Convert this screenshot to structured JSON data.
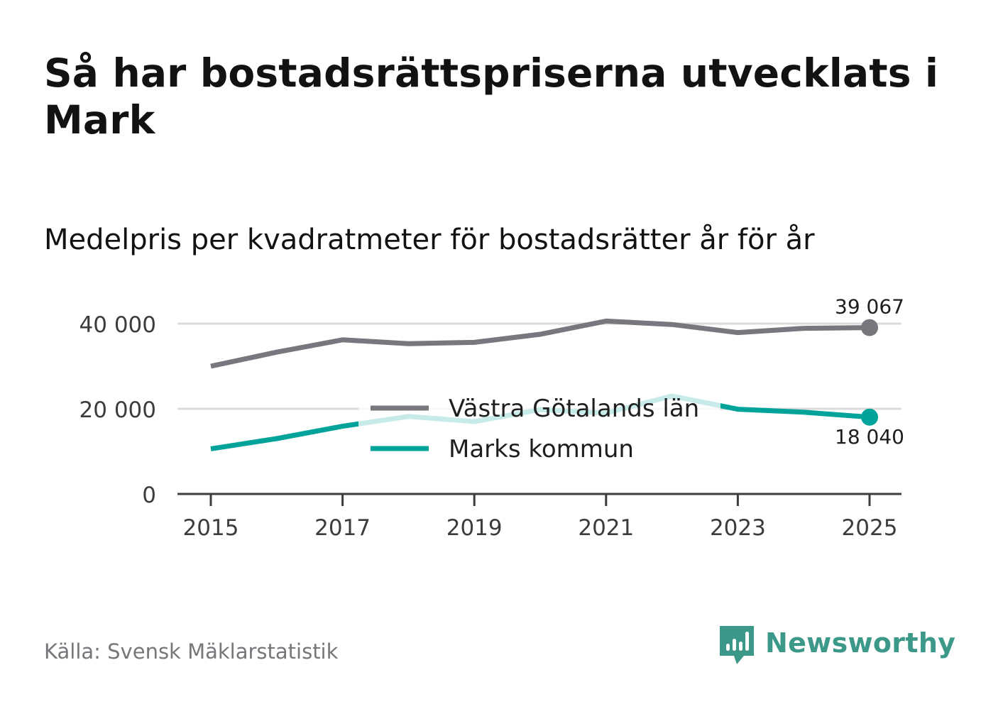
{
  "title": "Så har bostadsrättspriserna utvecklats i Mark",
  "subtitle": "Medelpris per kvadratmeter för bostadsrätter år för år",
  "source": "Källa: Svensk Mäklarstatistik",
  "brand": {
    "name": "Newsworthy",
    "icon": "newsworthy-logo-icon",
    "color": "#3c998a"
  },
  "chart_data": {
    "type": "line",
    "title": "Medelpris per kvadratmeter för bostadsrätter år för år",
    "xlabel": "",
    "ylabel": "",
    "x": [
      2015,
      2016,
      2017,
      2018,
      2019,
      2020,
      2021,
      2022,
      2023,
      2024,
      2025
    ],
    "xticks": [
      "2015",
      "2017",
      "2019",
      "2021",
      "2023",
      "2025"
    ],
    "yticks": [
      0,
      20000,
      40000
    ],
    "ytick_labels": [
      "0",
      "20 000",
      "40 000"
    ],
    "ylim": [
      0,
      40000
    ],
    "grid": true,
    "legend_position": "center",
    "series": [
      {
        "name": "Västra Götalands län",
        "color": "#77777d",
        "values": [
          30000,
          33300,
          36200,
          35300,
          35600,
          37500,
          40600,
          39800,
          37900,
          38900,
          39067
        ],
        "end_label": "39 067",
        "end_label_position": "above"
      },
      {
        "name": "Marks kommun",
        "color": "#00a39a",
        "values": [
          10600,
          13000,
          15900,
          18200,
          17000,
          19800,
          19000,
          23000,
          19900,
          19200,
          18040
        ],
        "end_label": "18 040",
        "end_label_position": "below"
      }
    ]
  }
}
